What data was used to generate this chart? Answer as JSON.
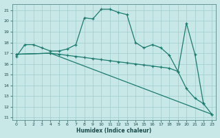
{
  "xlabel": "Humidex (Indice chaleur)",
  "xlim": [
    -0.5,
    23.5
  ],
  "ylim": [
    10.8,
    21.6
  ],
  "xticks": [
    0,
    1,
    2,
    3,
    4,
    5,
    6,
    7,
    8,
    9,
    10,
    11,
    12,
    13,
    14,
    15,
    16,
    17,
    18,
    19,
    20,
    21,
    22,
    23
  ],
  "yticks": [
    11,
    12,
    13,
    14,
    15,
    16,
    17,
    18,
    19,
    20,
    21
  ],
  "bg_color": "#c8e8e8",
  "grid_color": "#a0cccc",
  "line_color": "#1a7a6e",
  "curve1_x": [
    0,
    1,
    2,
    3,
    4,
    5,
    6,
    7,
    8,
    9,
    10,
    11,
    12,
    13,
    14,
    15,
    16,
    17,
    18,
    19,
    20,
    21,
    22
  ],
  "curve1_y": [
    16.7,
    17.8,
    17.8,
    17.5,
    17.2,
    17.2,
    17.4,
    17.8,
    20.3,
    20.2,
    21.1,
    21.1,
    20.8,
    20.6,
    18.0,
    17.5,
    17.8,
    17.5,
    16.8,
    15.3,
    19.8,
    16.9,
    12.3
  ],
  "curve2_x": [
    0,
    4,
    5,
    6,
    7,
    8,
    9,
    10,
    11,
    12,
    13,
    14,
    15,
    16,
    17,
    18,
    19,
    20,
    21,
    22,
    23
  ],
  "curve2_y": [
    16.9,
    17.0,
    16.9,
    16.8,
    16.7,
    16.6,
    16.5,
    16.4,
    16.3,
    16.2,
    16.1,
    16.0,
    15.9,
    15.8,
    15.7,
    15.6,
    15.3,
    13.7,
    12.8,
    12.3,
    11.3
  ],
  "curve3_x": [
    0,
    4,
    23
  ],
  "curve3_y": [
    16.9,
    17.0,
    11.3
  ]
}
